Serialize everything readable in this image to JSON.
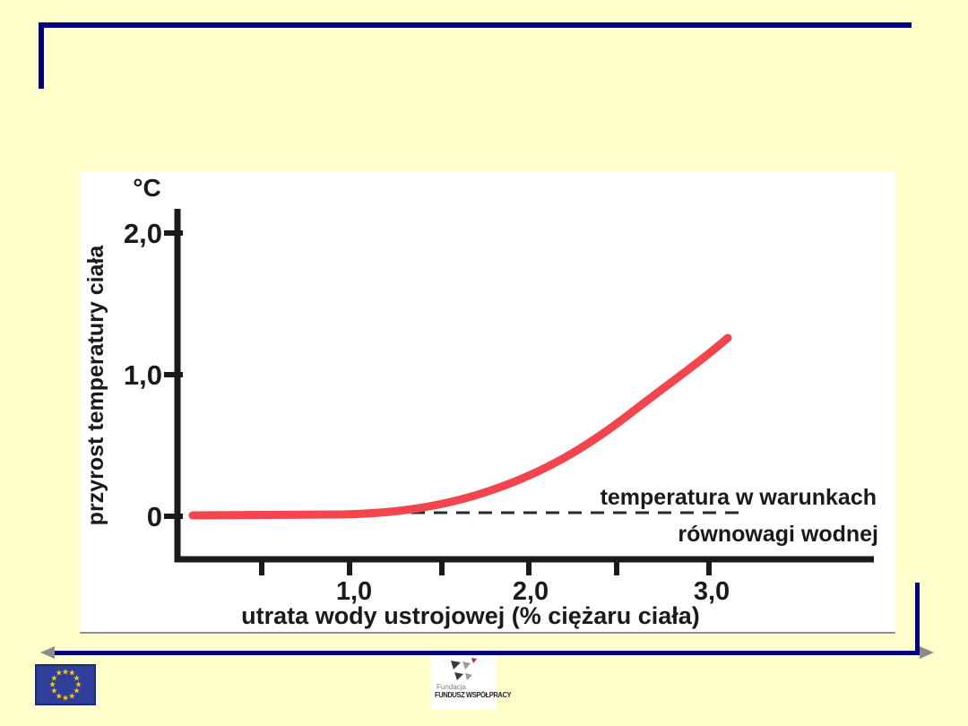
{
  "slide": {
    "background_color": "#FFFFCC",
    "border_color": "#000080",
    "arrow_color": "#8C8C8C"
  },
  "chart": {
    "unit_label": "°C",
    "y_axis_title": "przyrost temperatury ciała",
    "x_axis_title": "utrata wody ustrojowej  (% ciężaru ciała)",
    "y_tick_labels": [
      "2,0",
      "1,0",
      "0"
    ],
    "x_tick_labels": [
      "1,0",
      "2,0",
      "3,0"
    ],
    "annotation_line1": "temperatura w warunkach",
    "annotation_line2": "równowagi wodnej",
    "curve_color": "#F2454E",
    "axis_color": "#1A1A1A"
  },
  "chart_data": {
    "type": "line",
    "title": "",
    "xlabel": "utrata wody ustrojowej (% ciężaru ciała)",
    "ylabel": "przyrost temperatury ciała (°C)",
    "xlim": [
      0,
      3.9
    ],
    "ylim": [
      -0.3,
      2.2
    ],
    "x_ticks": [
      0.5,
      1.0,
      1.5,
      2.0,
      2.5,
      3.0
    ],
    "x_labeled_ticks": [
      "1,0",
      "2,0",
      "3,0"
    ],
    "y_ticks": [
      0,
      1.0,
      2.0
    ],
    "y_tick_labels": [
      "0",
      "1,0",
      "2,0"
    ],
    "grid": false,
    "legend": "none",
    "series": [
      {
        "name": "przyrost temperatury ciała",
        "color": "#F2454E",
        "style": "solid",
        "x": [
          0.15,
          0.5,
          1.0,
          1.25,
          1.5,
          1.75,
          2.0,
          2.25,
          2.5,
          2.75,
          3.0,
          3.12
        ],
        "y": [
          0.01,
          0.01,
          0.02,
          0.04,
          0.1,
          0.18,
          0.3,
          0.45,
          0.63,
          0.83,
          1.05,
          1.25
        ]
      },
      {
        "name": "temperatura w warunkach równowagi wodnej",
        "color": "#2A2A2A",
        "style": "dashed",
        "x": [
          1.0,
          3.25
        ],
        "y": [
          0,
          0
        ]
      }
    ],
    "annotations": [
      {
        "text": "temperatura w warunkach",
        "position": "right of plot, above dashed zero line"
      },
      {
        "text": "równowagi wodnej",
        "position": "right of plot, below dashed zero line"
      }
    ]
  },
  "footer": {
    "eu_flag": {
      "stars": 12,
      "flag_color": "#2F3F99",
      "star_color": "#FFCC00"
    },
    "logo": {
      "line1": "Fundacja",
      "line2": "FUNDUSZ WSPÓŁPRACY"
    }
  }
}
